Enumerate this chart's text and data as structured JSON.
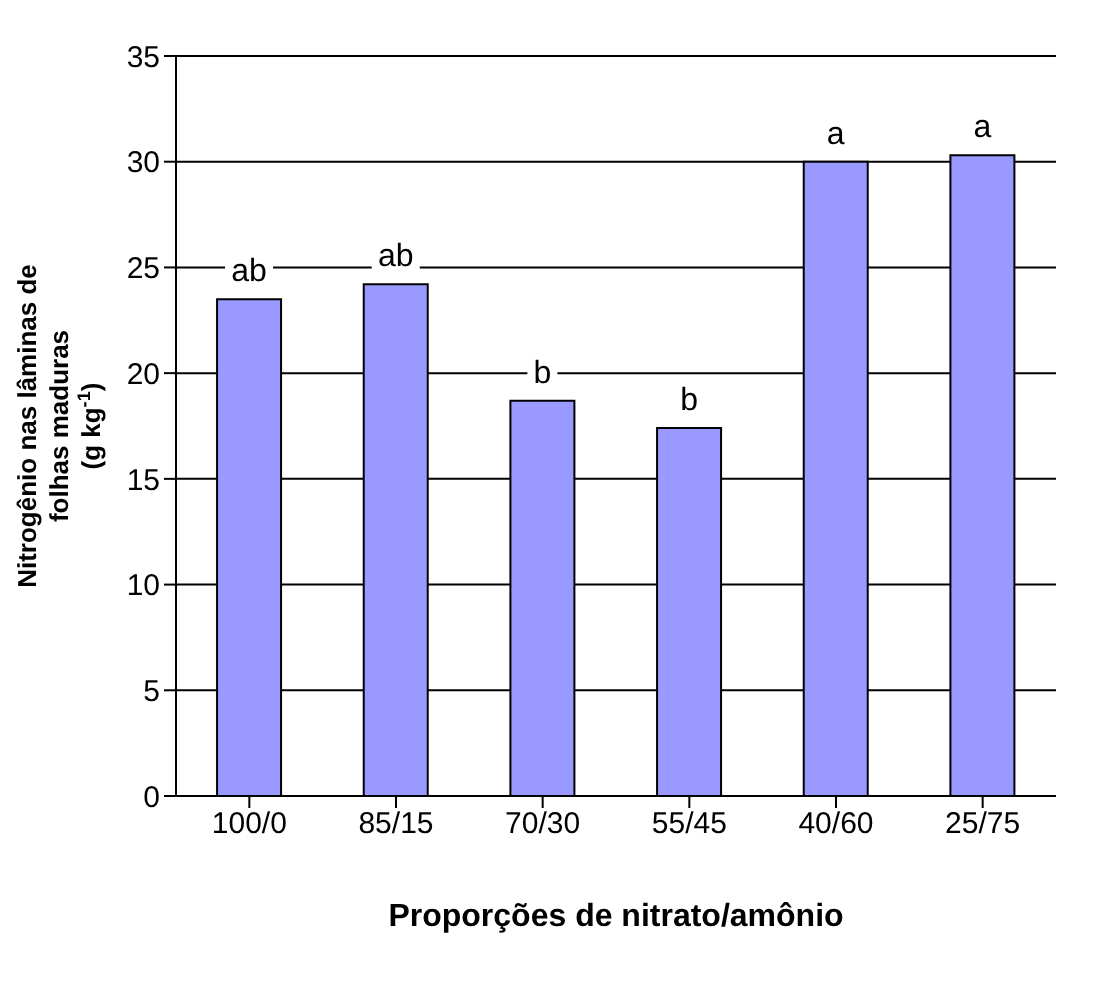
{
  "chart_data": {
    "type": "bar",
    "xlabel": "Proporções de nitrato/amônio",
    "ylabel": "Nitrogênio nas lâminas de folhas maduras (g kg$^{-1}$)",
    "categories": [
      "100/0",
      "85/15",
      "70/30",
      "55/45",
      "40/60",
      "25/75"
    ],
    "values": [
      23.5,
      24.2,
      18.7,
      17.4,
      30.0,
      30.3
    ],
    "color": "#9999ff",
    "ylim": [
      0,
      35
    ],
    "yticks": [
      0,
      5,
      10,
      15,
      20,
      25,
      30,
      35
    ],
    "grid": "y",
    "annotations": [
      "ab",
      "ab",
      "b",
      "b",
      "a",
      "a"
    ]
  }
}
